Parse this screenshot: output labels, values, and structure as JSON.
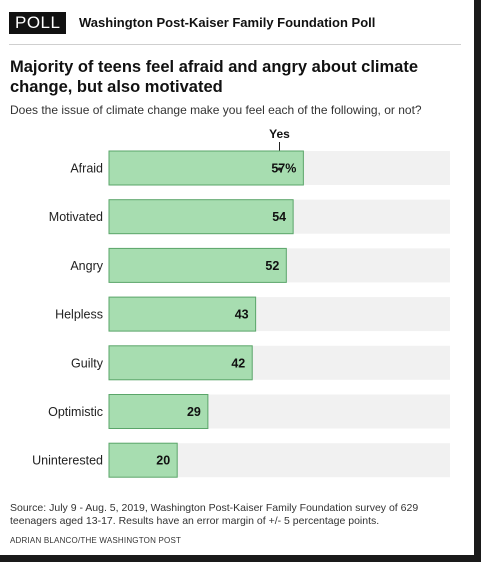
{
  "badge": "POLL",
  "poll_source": "Washington Post-Kaiser Family Foundation Poll",
  "headline": "Majority of teens feel afraid and angry about climate change, but also motivated",
  "subhead": "Does the issue of climate change make you feel each of the following, or not?",
  "chart_data": {
    "type": "bar",
    "orientation": "horizontal",
    "column_header": "Yes",
    "categories": [
      "Afraid",
      "Motivated",
      "Angry",
      "Helpless",
      "Guilty",
      "Optimistic",
      "Uninterested"
    ],
    "values": [
      57,
      54,
      52,
      43,
      42,
      29,
      20
    ],
    "value_labels": [
      "57%",
      "54",
      "52",
      "43",
      "42",
      "29",
      "20"
    ],
    "xlim": [
      0,
      100
    ],
    "bar_color": "#a7ddb0",
    "bar_border_color": "#5aa569",
    "track_color": "#f1f1f1"
  },
  "source": "Source: July 9 - Aug. 5, 2019, Washington Post-Kaiser Family Foundation survey of 629 teenagers aged 13-17. Results have an error margin of +/- 5 percentage points.",
  "credit": "ADRIAN BLANCO/THE WASHINGTON POST"
}
